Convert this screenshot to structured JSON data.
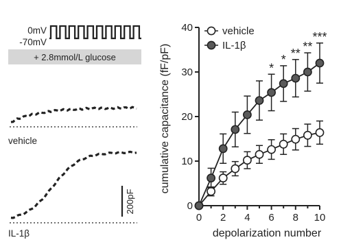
{
  "protocol": {
    "v_high": "0mV",
    "v_low": "-70mV",
    "pulse_count": 10,
    "glucose_label": "+ 2.8mmol/L glucose"
  },
  "traces": {
    "vehicle_label": "vehicle",
    "il1b_label": "IL-1β",
    "scale_bar_label": "200pF"
  },
  "chart_data": {
    "type": "line",
    "xlabel": "depolarization number",
    "ylabel": "cumulative capacitance (fF/pF)",
    "xlim": [
      0,
      10
    ],
    "ylim": [
      0,
      40
    ],
    "xticks": [
      "0",
      "2",
      "4",
      "6",
      "8",
      "10"
    ],
    "yticks": [
      "0",
      "10",
      "20",
      "30",
      "40"
    ],
    "legend_position": "top-left",
    "grid": false,
    "x": [
      0,
      1,
      2,
      3,
      4,
      5,
      6,
      7,
      8,
      9,
      10
    ],
    "series": [
      {
        "name": "vehicle",
        "marker": "open-circle",
        "color": "#ffffff",
        "values": [
          0,
          3.2,
          6.2,
          8.3,
          10.2,
          11.5,
          12.6,
          13.8,
          14.9,
          15.8,
          16.4
        ],
        "errors": [
          0,
          1.0,
          1.4,
          1.6,
          1.9,
          2.0,
          2.2,
          2.3,
          2.4,
          2.5,
          2.6
        ]
      },
      {
        "name": "IL-1β",
        "marker": "filled-circle",
        "color": "#5a5a5a",
        "values": [
          0,
          6.2,
          12.8,
          17.1,
          20.4,
          23.6,
          25.4,
          27.4,
          28.6,
          30.0,
          32.0
        ],
        "errors": [
          0,
          2.2,
          3.3,
          3.9,
          4.2,
          4.4,
          4.1,
          4.0,
          4.2,
          4.3,
          4.5
        ]
      }
    ],
    "significance": [
      {
        "x": 6,
        "label": "*"
      },
      {
        "x": 7,
        "label": "*"
      },
      {
        "x": 8,
        "label": "**"
      },
      {
        "x": 9,
        "label": "**"
      },
      {
        "x": 10,
        "label": "***"
      }
    ]
  }
}
